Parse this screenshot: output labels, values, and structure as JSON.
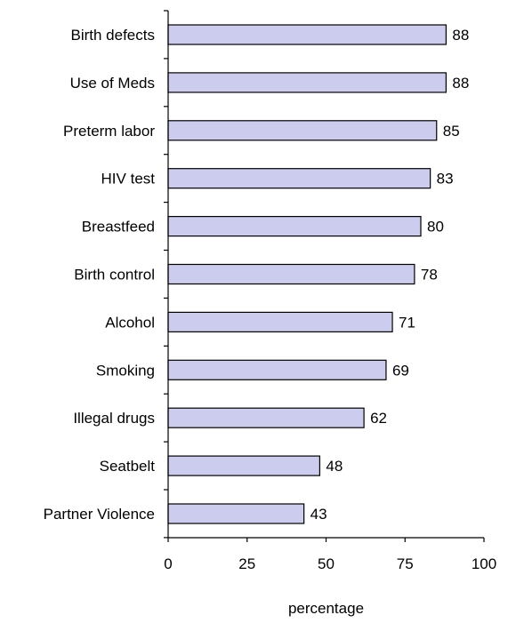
{
  "chart_data": {
    "type": "bar",
    "orientation": "horizontal",
    "categories": [
      "Birth defects",
      "Use of Meds",
      "Preterm labor",
      "HIV test",
      "Breastfeed",
      "Birth control",
      "Alcohol",
      "Smoking",
      "Illegal drugs",
      "Seatbelt",
      "Partner Violence"
    ],
    "values": [
      88,
      88,
      85,
      83,
      80,
      78,
      71,
      69,
      62,
      48,
      43
    ],
    "data_labels": [
      "88",
      "88",
      "85",
      "83",
      "80",
      "78",
      "71",
      "69",
      "62",
      "48",
      "43"
    ],
    "xlabel": "percentage",
    "ylabel": "",
    "xlim": [
      0,
      100
    ],
    "x_ticks": [
      0,
      25,
      50,
      75,
      100
    ],
    "x_tick_labels": [
      "0",
      "25",
      "50",
      "75",
      "100"
    ],
    "grid": false,
    "legend": "none",
    "colors": {
      "bar_fill": "#ccccee",
      "bar_stroke": "#000000",
      "axis": "#000000",
      "text": "#000000"
    }
  }
}
